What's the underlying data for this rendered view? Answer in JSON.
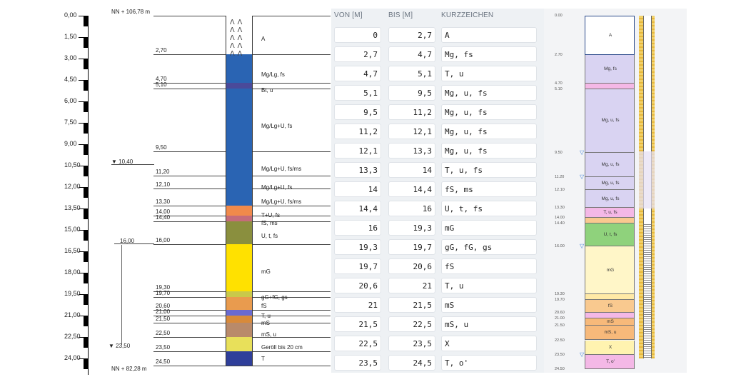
{
  "left_log": {
    "nn_top": "NN + 106,78 m",
    "nn_bottom": "NN + 82,28 m",
    "scale_labels": [
      "0,00",
      "1,50",
      "3,00",
      "4,50",
      "6,00",
      "7,50",
      "9,00",
      "10,50",
      "12,00",
      "13,50",
      "15,00",
      "16,50",
      "18,00",
      "19,50",
      "21,00",
      "22,50",
      "24,00"
    ],
    "water_level_1": "10,40",
    "water_level_2": "16,00",
    "water_level_3": "23,50",
    "depths": [
      "2,70",
      "4,70",
      "5,10",
      "9,50",
      "11,20",
      "12,10",
      "13,30",
      "14,00",
      "14,40",
      "16,00",
      "19,30",
      "19,70",
      "20,60",
      "21,00",
      "21,50",
      "22,50",
      "23,50",
      "24,50"
    ],
    "descriptions": [
      "A",
      "Mg/Lg, fs",
      "Bt, u",
      "Mg/Lg+U, fs",
      "Mg/Lg+U, fs/ms",
      "Mg/Lg+U, fs",
      "Mg/Lg+U, fs/ms",
      "T+U, fs",
      "fS, ms",
      "U, t, fs",
      "mG",
      "gG+fG, gs",
      "fS",
      "T, u",
      "mS",
      "mS, u",
      "Geröll bis 20 cm",
      "T"
    ]
  },
  "table": {
    "headers": {
      "von": "VON [M]",
      "bis": "BIS [M]",
      "kurz": "KURZZEICHEN"
    },
    "rows": [
      {
        "von": "0",
        "bis": "2,7",
        "kurz": "A"
      },
      {
        "von": "2,7",
        "bis": "4,7",
        "kurz": "Mg, fs"
      },
      {
        "von": "4,7",
        "bis": "5,1",
        "kurz": "T, u"
      },
      {
        "von": "5,1",
        "bis": "9,5",
        "kurz": "Mg, u, fs"
      },
      {
        "von": "9,5",
        "bis": "11,2",
        "kurz": "Mg, u, fs"
      },
      {
        "von": "11,2",
        "bis": "12,1",
        "kurz": "Mg, u, fs"
      },
      {
        "von": "12,1",
        "bis": "13,3",
        "kurz": "Mg, u, fs"
      },
      {
        "von": "13,3",
        "bis": "14",
        "kurz": "T, u, fs"
      },
      {
        "von": "14",
        "bis": "14,4",
        "kurz": "fS, ms"
      },
      {
        "von": "14,4",
        "bis": "16",
        "kurz": "U, t, fs"
      },
      {
        "von": "16",
        "bis": "19,3",
        "kurz": "mG"
      },
      {
        "von": "19,3",
        "bis": "19,7",
        "kurz": "gG, fG, gs"
      },
      {
        "von": "19,7",
        "bis": "20,6",
        "kurz": "fS"
      },
      {
        "von": "20,6",
        "bis": "21",
        "kurz": "T, u"
      },
      {
        "von": "21",
        "bis": "21,5",
        "kurz": "mS"
      },
      {
        "von": "21,5",
        "bis": "22,5",
        "kurz": "mS, u"
      },
      {
        "von": "22,5",
        "bis": "23,5",
        "kurz": "X"
      },
      {
        "von": "23,5",
        "bis": "24,5",
        "kurz": "T, o'"
      }
    ]
  },
  "right_log": {
    "depth_labels": [
      "0.00",
      "2.70",
      "4.70",
      "5.10",
      "9.50",
      "11.20",
      "12.10",
      "13.30",
      "14.00",
      "14.40",
      "16.00",
      "19.30",
      "19.70",
      "20.60",
      "21.00",
      "21.50",
      "22.50",
      "23.50",
      "24.50"
    ],
    "layer_texts": [
      "A",
      "Mg, fs",
      "",
      "Mg, u, fs",
      "Mg, u, fs",
      "Mg, u, fs",
      "Mg, u, fs",
      "T, u, fs",
      "",
      "U, t, fs",
      "mG",
      "",
      "fS",
      "",
      "mS",
      "mS, u",
      "X",
      "T, o'"
    ],
    "colors": {
      "A": "#ffffff",
      "Mg": "#d9d3f2",
      "T": "#f4b8e6",
      "fS": "#f9c98f",
      "U": "#8fd27c",
      "mG": "#fff6c8",
      "gG": "#ffe9a6",
      "mS": "#f7b97a",
      "X": "#fff3b0"
    }
  },
  "colors": {
    "table_bg": "#eef1f4",
    "header_text": "#6a7480",
    "left_blue": "#2a64b3",
    "left_yellow": "#ffe100",
    "left_orange": "#e99b4e",
    "left_olive": "#8a8f3e",
    "left_navy": "#2f3f9a"
  }
}
